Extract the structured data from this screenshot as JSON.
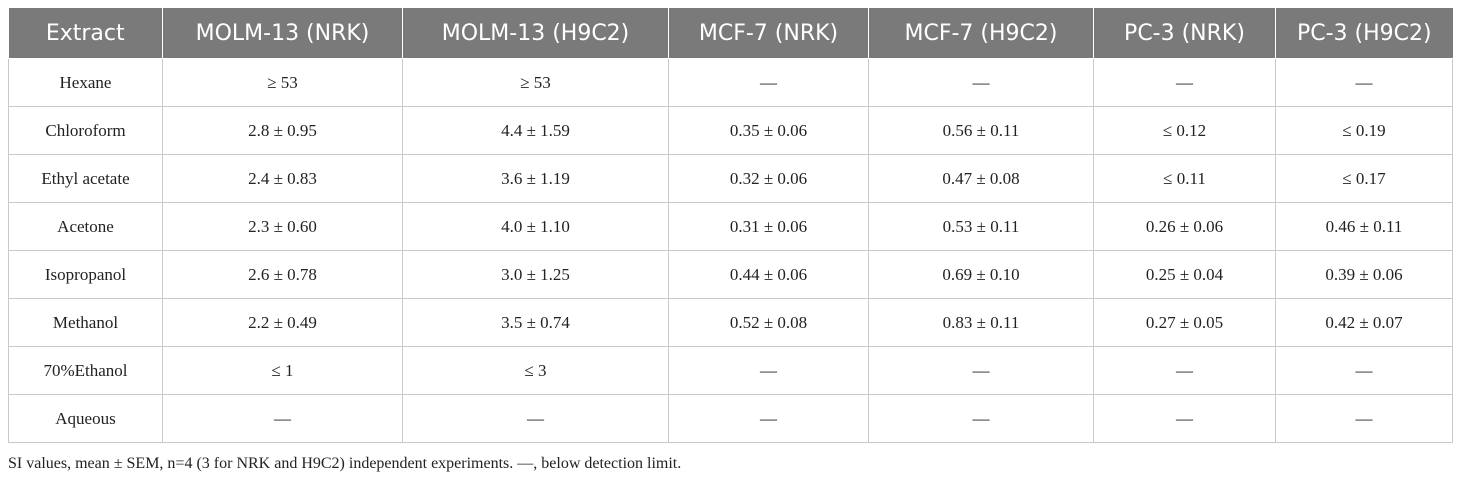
{
  "table": {
    "headers": [
      "Extract",
      "MOLM-13 (NRK)",
      "MOLM-13 (H9C2)",
      "MCF-7 (NRK)",
      "MCF-7 (H9C2)",
      "PC-3 (NRK)",
      "PC-3 (H9C2)"
    ],
    "rows": [
      [
        "Hexane",
        "≥ 53",
        "≥ 53",
        "—",
        "—",
        "—",
        "—"
      ],
      [
        "Chloroform",
        "2.8 ± 0.95",
        "4.4 ± 1.59",
        "0.35 ± 0.06",
        "0.56 ± 0.11",
        "≤ 0.12",
        "≤ 0.19"
      ],
      [
        "Ethyl acetate",
        "2.4 ± 0.83",
        "3.6 ± 1.19",
        "0.32 ± 0.06",
        "0.47 ± 0.08",
        "≤ 0.11",
        "≤ 0.17"
      ],
      [
        "Acetone",
        "2.3 ± 0.60",
        "4.0 ± 1.10",
        "0.31 ± 0.06",
        "0.53 ± 0.11",
        "0.26 ± 0.06",
        "0.46 ± 0.11"
      ],
      [
        "Isopropanol",
        "2.6 ± 0.78",
        "3.0 ± 1.25",
        "0.44 ± 0.06",
        "0.69 ± 0.10",
        "0.25 ± 0.04",
        "0.39 ± 0.06"
      ],
      [
        "Methanol",
        "2.2 ± 0.49",
        "3.5 ± 0.74",
        "0.52 ± 0.08",
        "0.83 ± 0.11",
        "0.27 ± 0.05",
        "0.42 ± 0.07"
      ],
      [
        "70%Ethanol",
        "≤ 1",
        "≤ 3",
        "—",
        "—",
        "—",
        "—"
      ],
      [
        "Aqueous",
        "—",
        "—",
        "—",
        "—",
        "—",
        "—"
      ]
    ]
  },
  "footnote": "SI values, mean ± SEM, n=4 (3 for NRK and H9C2) independent experiments. —, below detection limit.",
  "colors": {
    "header_background": "#7a7a7a",
    "header_text": "#ffffff",
    "grid_lines": "#c9c9c9"
  }
}
